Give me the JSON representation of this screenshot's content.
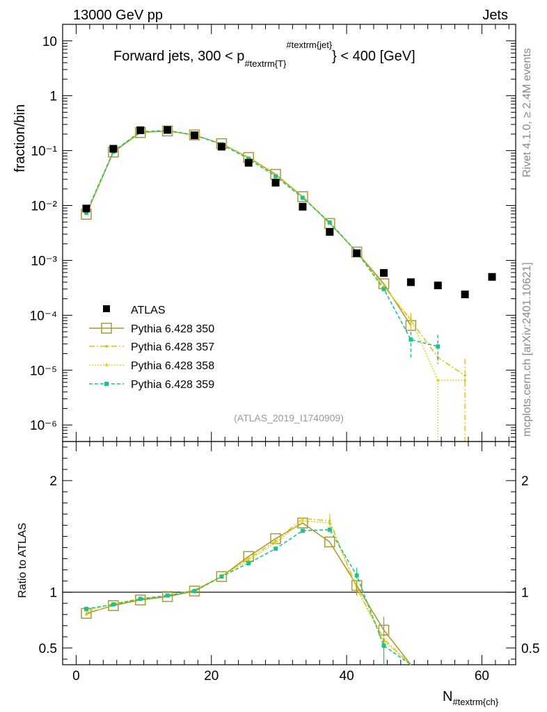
{
  "header": {
    "left": "13000 GeV pp",
    "right": "Jets",
    "side_top": "Rivet 4.1.0, ≥ 2.4M events",
    "side_bottom": "mcplots.cern.ch [arXiv:2401.10621]"
  },
  "colors": {
    "atlas": "#000000",
    "p350": "#a89a2e",
    "p357": "#e0c020",
    "p358": "#d8d820",
    "p359": "#20c08a"
  },
  "chart_data": [
    {
      "type": "scatter",
      "title": "Forward jets, 300 < p_{#textrm{T}}^{#textrm{jet}} < 400 [GeV]",
      "title_parts": {
        "pre": "Forward jets, 300 < p",
        "sub": "#textrm{T}",
        "sup": "#textrm{jet}",
        "post": "} < 400 [GeV]"
      },
      "ylabel": "fraction/bin",
      "yscale": "log",
      "ylim": [
        5e-07,
        20
      ],
      "xlim": [
        -2,
        65
      ],
      "ytick_labels": [
        "10⁻⁶",
        "10⁻⁵",
        "10⁻⁴",
        "10⁻³",
        "10⁻²",
        "10⁻¹",
        "1",
        "10"
      ],
      "watermark": "(ATLAS_2019_I1740909)",
      "legend": [
        "ATLAS",
        "Pythia 6.428 350",
        "Pythia 6.428 357",
        "Pythia 6.428 358",
        "Pythia 6.428 359"
      ],
      "x": [
        1.5,
        5.5,
        9.5,
        13.5,
        17.5,
        21.5,
        25.5,
        29.5,
        33.5,
        37.5,
        41.5,
        45.5,
        49.5,
        53.5,
        57.5,
        61.5
      ],
      "series": [
        {
          "name": "ATLAS",
          "values": [
            0.0088,
            0.108,
            0.235,
            0.238,
            0.19,
            0.118,
            0.06,
            0.026,
            0.0095,
            0.0033,
            0.00135,
            0.00059,
            0.0004,
            0.00035,
            0.00024,
            0.0005
          ]
        },
        {
          "name": "Pythia 6.428 350",
          "values": [
            0.0069,
            0.094,
            0.213,
            0.228,
            0.193,
            0.134,
            0.075,
            0.037,
            0.0145,
            0.0047,
            0.00142,
            0.000375,
            6.5e-05,
            null,
            null,
            null
          ]
        },
        {
          "name": "Pythia 6.428 357",
          "values": [
            0.0071,
            0.097,
            0.218,
            0.231,
            0.193,
            0.133,
            0.074,
            0.036,
            0.0142,
            0.0049,
            0.0014,
            0.00034,
            8e-05,
            1.7e-05,
            8e-06,
            null
          ]
        },
        {
          "name": "Pythia 6.428 358",
          "values": [
            0.0073,
            0.098,
            0.22,
            0.232,
            0.193,
            0.133,
            0.073,
            0.035,
            0.014,
            0.0048,
            0.00139,
            0.00033,
            8.5e-05,
            6.5e-06,
            6.5e-06,
            null
          ]
        },
        {
          "name": "Pythia 6.428 359",
          "values": [
            0.0074,
            0.096,
            0.222,
            0.233,
            0.192,
            0.13,
            0.071,
            0.034,
            0.0138,
            0.0049,
            0.00142,
            0.0003,
            3.6e-05,
            2.7e-05,
            null,
            null
          ]
        }
      ]
    },
    {
      "type": "line",
      "ylabel": "Ratio to ATLAS",
      "xlabel": "N_{#textrm{ch}}",
      "xlabel_parts": {
        "main": "N",
        "sub": "#textrm{ch}"
      },
      "ylim": [
        0.35,
        2.35
      ],
      "xlim": [
        -2,
        65
      ],
      "xtick_labels": [
        "0",
        "20",
        "40",
        "60"
      ],
      "ytick_labels": [
        "0.5",
        "1",
        "2"
      ],
      "reference_line": 1,
      "x": [
        1.5,
        5.5,
        9.5,
        13.5,
        17.5,
        21.5,
        25.5,
        29.5,
        33.5,
        37.5,
        41.5,
        45.5,
        49.5
      ],
      "series": [
        {
          "name": "Pythia 6.428 350",
          "values": [
            0.81,
            0.88,
            0.93,
            0.96,
            1.01,
            1.14,
            1.32,
            1.48,
            1.62,
            1.45,
            1.06,
            0.66,
            0.19
          ]
        },
        {
          "name": "Pythia 6.428 357",
          "values": [
            0.8,
            0.89,
            0.94,
            0.97,
            1.02,
            1.14,
            1.3,
            1.46,
            1.66,
            1.64,
            1.04,
            0.58,
            0.2
          ]
        },
        {
          "name": "Pythia 6.428 358",
          "values": [
            0.83,
            0.9,
            0.94,
            0.97,
            1.02,
            1.14,
            1.29,
            1.44,
            1.64,
            1.62,
            1.03,
            0.56,
            0.2
          ]
        },
        {
          "name": "Pythia 6.428 359",
          "values": [
            0.85,
            0.89,
            0.94,
            0.97,
            1.01,
            1.14,
            1.26,
            1.39,
            1.55,
            1.56,
            1.15,
            0.52,
            0.09
          ]
        }
      ]
    }
  ]
}
